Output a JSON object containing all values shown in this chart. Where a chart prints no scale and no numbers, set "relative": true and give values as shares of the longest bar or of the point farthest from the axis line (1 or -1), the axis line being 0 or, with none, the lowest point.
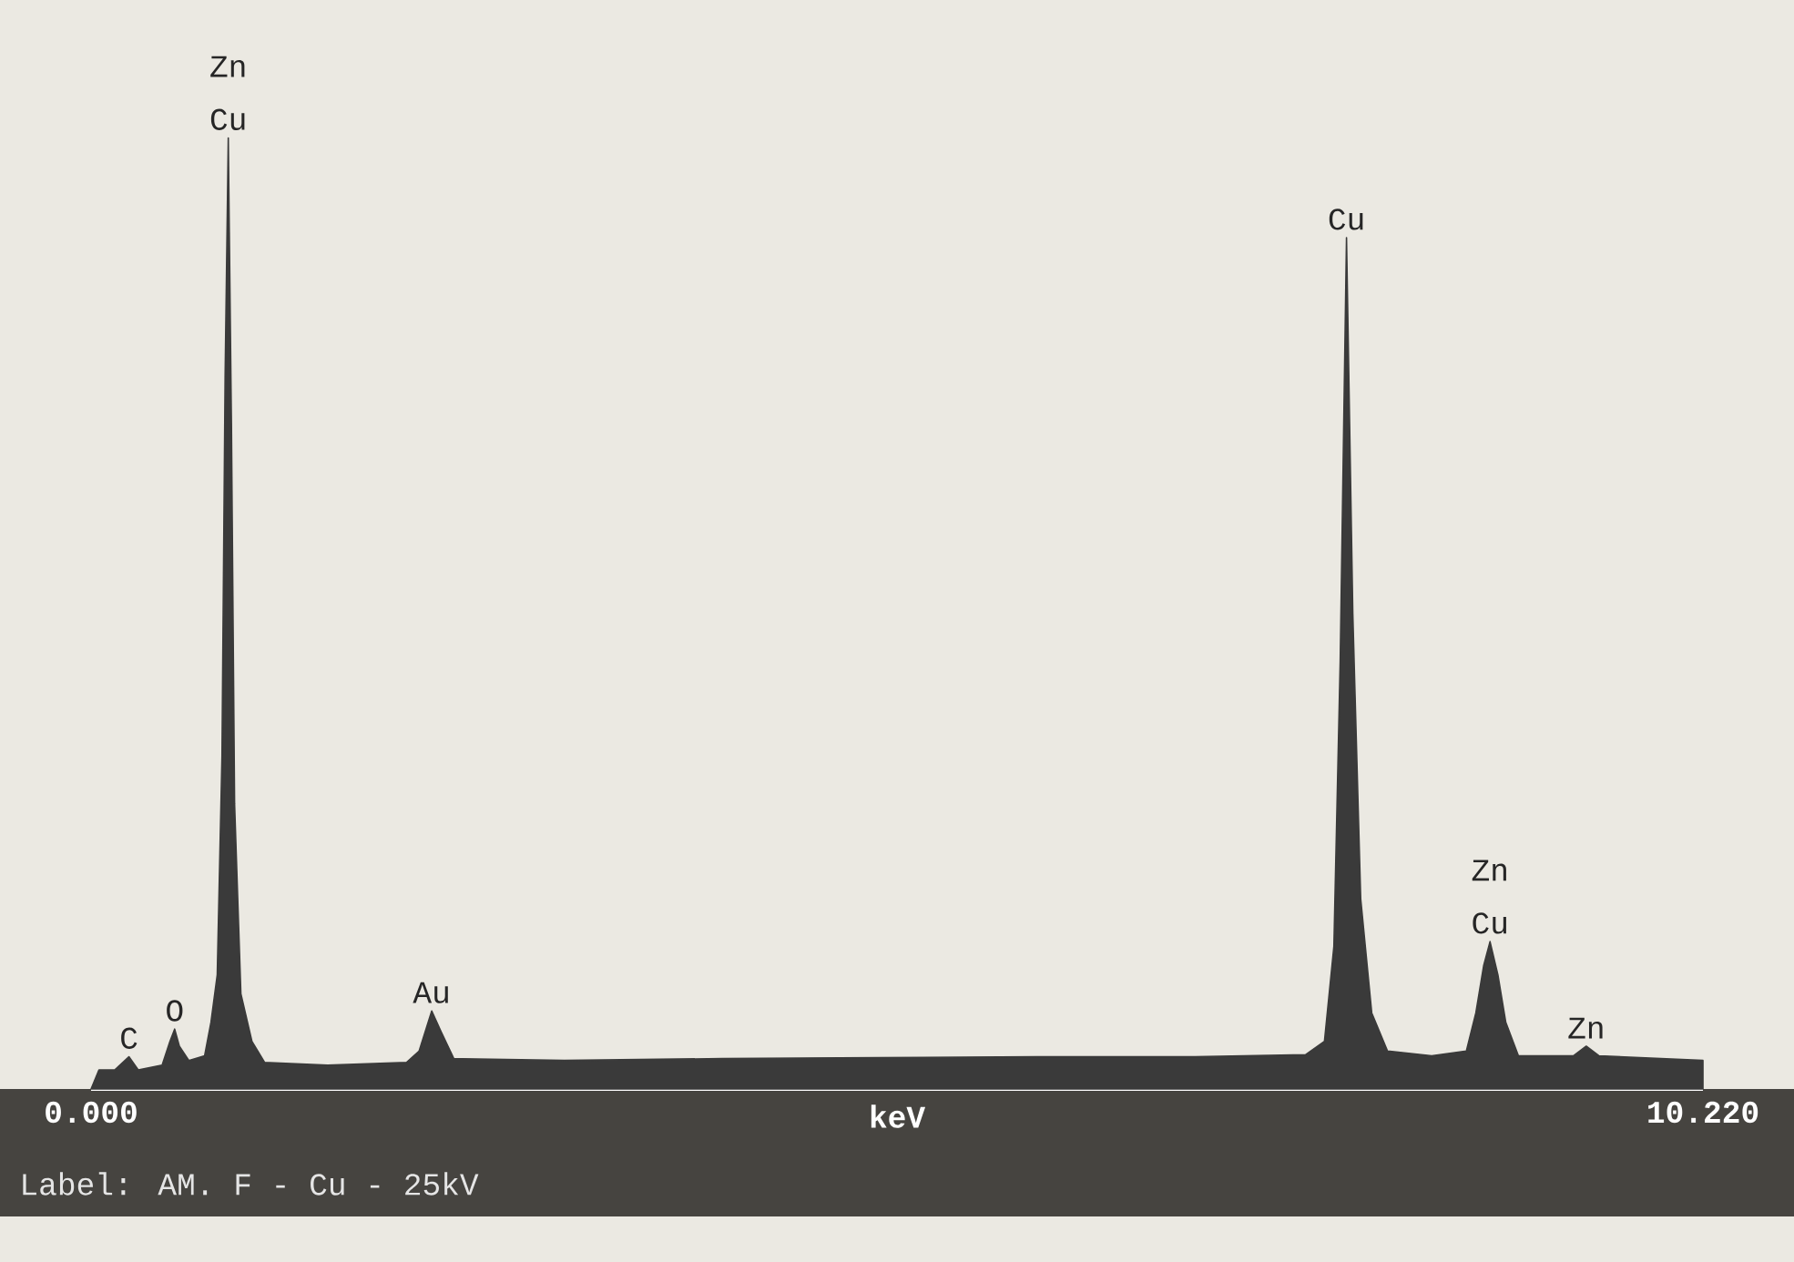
{
  "chart_data": {
    "type": "area",
    "relative": true,
    "xlabel": "keV",
    "color": "#3a3a3a",
    "xlim": [
      0,
      10.22
    ],
    "xticks": [
      {
        "value": 0,
        "label": "0.000"
      },
      {
        "value": 10.22,
        "label": "10.220"
      }
    ],
    "x": [
      0.0,
      0.05,
      0.15,
      0.24,
      0.3,
      0.45,
      0.5,
      0.53,
      0.56,
      0.62,
      0.72,
      0.76,
      0.8,
      0.83,
      0.85,
      0.87,
      0.89,
      0.91,
      0.95,
      1.02,
      1.1,
      1.5,
      2.0,
      2.08,
      2.16,
      2.22,
      2.3,
      3.0,
      4.0,
      5.0,
      6.0,
      7.0,
      7.7,
      7.82,
      7.88,
      7.92,
      7.96,
      8.0,
      8.05,
      8.12,
      8.22,
      8.5,
      8.72,
      8.78,
      8.83,
      8.87,
      8.92,
      8.97,
      9.05,
      9.4,
      9.48,
      9.56,
      10.22
    ],
    "values": [
      0.0,
      0.02,
      0.02,
      0.034,
      0.02,
      0.025,
      0.05,
      0.063,
      0.045,
      0.03,
      0.035,
      0.07,
      0.12,
      0.35,
      0.75,
      1.0,
      0.7,
      0.3,
      0.1,
      0.05,
      0.028,
      0.025,
      0.028,
      0.04,
      0.082,
      0.06,
      0.032,
      0.03,
      0.032,
      0.033,
      0.034,
      0.034,
      0.036,
      0.05,
      0.15,
      0.45,
      0.895,
      0.5,
      0.2,
      0.08,
      0.04,
      0.035,
      0.04,
      0.08,
      0.13,
      0.155,
      0.12,
      0.07,
      0.035,
      0.035,
      0.045,
      0.035,
      0.03
    ],
    "annotations": [
      {
        "text": "C",
        "x": 0.24,
        "y": 0.034
      },
      {
        "text": "O",
        "x": 0.53,
        "y": 0.063
      },
      {
        "text": "Cu",
        "x": 0.87,
        "y": 1.0
      },
      {
        "text": "Zn",
        "x": 0.87,
        "y": 1.0
      },
      {
        "text": "Au",
        "x": 2.16,
        "y": 0.082
      },
      {
        "text": "Cu",
        "x": 7.96,
        "y": 0.895
      },
      {
        "text": "Cu",
        "x": 8.87,
        "y": 0.155
      },
      {
        "text": "Zn",
        "x": 8.87,
        "y": 0.155
      },
      {
        "text": "Zn",
        "x": 9.48,
        "y": 0.045
      },
      "Label: AM. F - Cu - 25kV"
    ]
  }
}
